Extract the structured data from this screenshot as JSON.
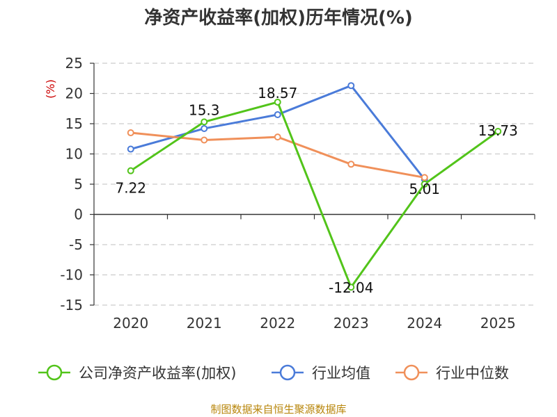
{
  "chart_data": {
    "type": "line",
    "title": "净资产收益率(加权)历年情况(%)",
    "ylabel": "(%)",
    "xlabel": "",
    "categories": [
      "2020",
      "2021",
      "2022",
      "2023",
      "2024",
      "2025"
    ],
    "ylim": [
      -15,
      25
    ],
    "yticks": [
      25,
      20,
      15,
      10,
      5,
      0,
      -5,
      -10,
      -15
    ],
    "grid": true,
    "legend_position": "bottom",
    "series": [
      {
        "name": "公司净资产收益率(加权)",
        "color": "#52c41a",
        "values": [
          7.22,
          15.3,
          18.57,
          -12.04,
          5.01,
          13.73
        ],
        "labels": [
          "7.22",
          "15.3",
          "18.57",
          "-12.04",
          "5.01",
          "13.73"
        ]
      },
      {
        "name": "行业均值",
        "color": "#4a7bd9",
        "values": [
          10.8,
          14.2,
          16.5,
          21.3,
          5.8,
          null
        ]
      },
      {
        "name": "行业中位数",
        "color": "#f0905a",
        "values": [
          13.5,
          12.3,
          12.8,
          8.3,
          6.1,
          null
        ]
      }
    ]
  },
  "footer": {
    "source": "制图数据来自恒生聚源数据库"
  }
}
